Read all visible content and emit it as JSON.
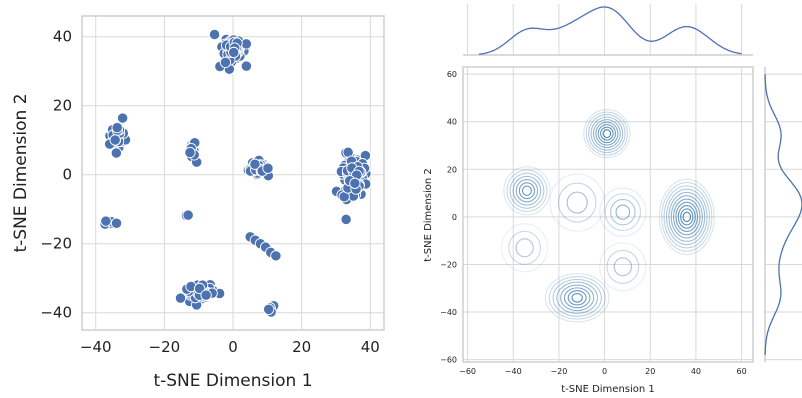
{
  "chart_data": [
    {
      "type": "scatter",
      "xlabel": "t-SNE Dimension 1",
      "ylabel": "t-SNE Dimension 2",
      "xlim": [
        -44,
        44
      ],
      "ylim": [
        -45,
        46
      ],
      "xticks": [
        -40,
        -20,
        0,
        20,
        40
      ],
      "yticks": [
        -40,
        -20,
        0,
        20,
        40
      ],
      "xtick_labels": [
        "−40",
        "−20",
        "0",
        "20",
        "40"
      ],
      "ytick_labels": [
        "−40",
        "−20",
        "0",
        "20",
        "40"
      ],
      "grid": true,
      "marker_color": "#4c72b0",
      "clusters": [
        {
          "cx": 0,
          "cy": 36,
          "sx": 3,
          "sy": 4,
          "n": 70
        },
        {
          "cx": -34,
          "cy": 11,
          "sx": 2,
          "sy": 3,
          "n": 40
        },
        {
          "cx": -12,
          "cy": 7,
          "sx": 1,
          "sy": 3,
          "n": 20
        },
        {
          "cx": 8,
          "cy": 2,
          "sx": 2.5,
          "sy": 2,
          "n": 35
        },
        {
          "cx": 35,
          "cy": 0,
          "sx": 3,
          "sy": 5,
          "n": 110
        },
        {
          "cx": -36,
          "cy": -14,
          "sx": 2,
          "sy": 0.5,
          "n": 8
        },
        {
          "cx": -13,
          "cy": -11.5,
          "sx": 0.5,
          "sy": 0.5,
          "n": 3
        },
        {
          "cx": -10,
          "cy": -34,
          "sx": 5,
          "sy": 2,
          "n": 60
        },
        {
          "cx": 11,
          "cy": -38.5,
          "sx": 1,
          "sy": 1,
          "n": 5
        }
      ],
      "line_points": [
        [
          5,
          -18
        ],
        [
          6.5,
          -19
        ],
        [
          8,
          -20
        ],
        [
          9.5,
          -21
        ],
        [
          11,
          -22.5
        ],
        [
          12.5,
          -23.5
        ]
      ]
    },
    {
      "type": "kde-joint",
      "xlabel": "t-SNE Dimension 1",
      "ylabel": "t-SNE Dimension 2",
      "xlim": [
        -62,
        65
      ],
      "ylim": [
        -61,
        63
      ],
      "xticks": [
        -60,
        -40,
        -20,
        0,
        20,
        40,
        60
      ],
      "yticks": [
        -60,
        -40,
        -20,
        0,
        20,
        40,
        60
      ],
      "xtick_labels": [
        "−60",
        "−40",
        "−20",
        "0",
        "20",
        "40",
        "60"
      ],
      "ytick_labels": [
        "−60",
        "−40",
        "−20",
        "0",
        "20",
        "40",
        "60"
      ],
      "grid": true,
      "contour_color": "#2a6fa8",
      "marginal_color": "#4c72b0",
      "peaks": [
        {
          "x": 1,
          "y": 35,
          "sx": 5,
          "sy": 5,
          "w": 1.0
        },
        {
          "x": -34,
          "y": 11,
          "sx": 5,
          "sy": 5,
          "w": 0.8
        },
        {
          "x": 36,
          "y": 0,
          "sx": 6,
          "sy": 8,
          "w": 1.2
        },
        {
          "x": -12,
          "y": -34,
          "sx": 7,
          "sy": 5,
          "w": 0.9
        },
        {
          "x": 8,
          "y": 2,
          "sx": 5,
          "sy": 5,
          "w": 0.4
        },
        {
          "x": -12,
          "y": 6,
          "sx": 6,
          "sy": 6,
          "w": 0.3
        },
        {
          "x": 8,
          "y": -21,
          "sx": 5,
          "sy": 5,
          "w": 0.25
        },
        {
          "x": -35,
          "y": -13,
          "sx": 5,
          "sy": 5,
          "w": 0.15
        }
      ]
    }
  ]
}
